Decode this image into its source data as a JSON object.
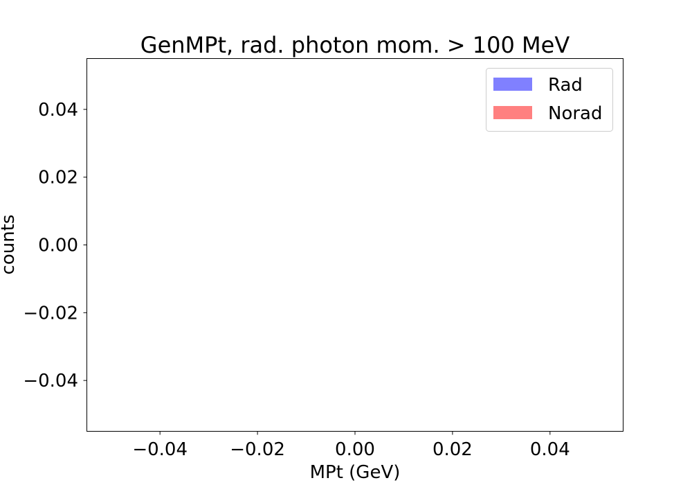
{
  "chart_data": {
    "type": "bar",
    "title": "GenMPt, rad. photon mom. > 100 MeV",
    "xlabel": "MPt (GeV)",
    "ylabel": "counts",
    "xlim": [
      -0.055,
      0.055
    ],
    "ylim": [
      -0.055,
      0.055
    ],
    "xticks": [
      -0.04,
      -0.02,
      0.0,
      0.02,
      0.04
    ],
    "yticks": [
      -0.04,
      -0.02,
      0.0,
      0.02,
      0.04
    ],
    "xtick_labels": [
      "−0.04",
      "−0.02",
      "0.00",
      "0.02",
      "0.04"
    ],
    "ytick_labels": [
      "−0.04",
      "−0.02",
      "0.00",
      "0.02",
      "0.04"
    ],
    "grid": false,
    "legend_position": "top-right",
    "series": [
      {
        "name": "Rad",
        "color": "#8080ff",
        "values": []
      },
      {
        "name": "Norad",
        "color": "#ff8080",
        "values": []
      }
    ]
  }
}
